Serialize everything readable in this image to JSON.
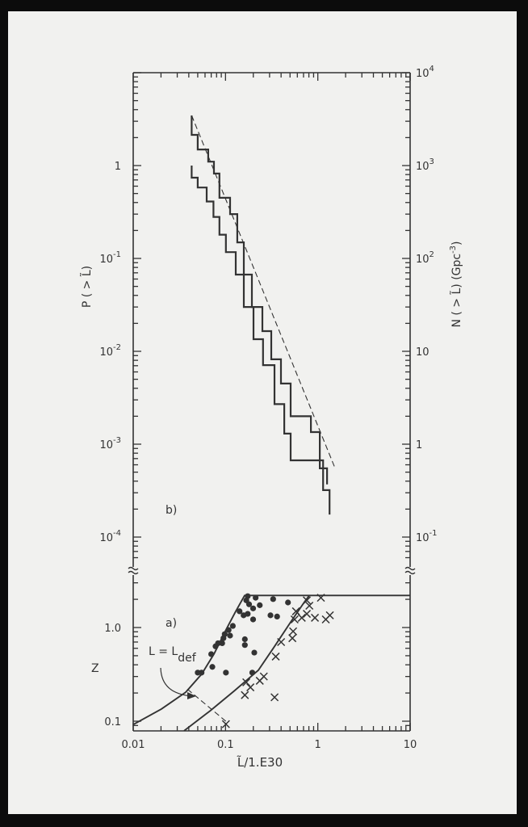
{
  "colors": {
    "ink": "#333333",
    "paper": "#f1f1ef",
    "frame": "#0c0c0c"
  },
  "chart_data": [
    {
      "panel": "b)",
      "type": "line",
      "x_scale": "log",
      "y_scale": "log",
      "xlim": [
        0.01,
        10
      ],
      "ylim": [
        4e-05,
        10
      ],
      "ylabel": "P ( > L̃)",
      "ylabel_right": {
        "text": "N ( > L̃) (Gpc",
        "exp": "-3",
        "tail": ")"
      },
      "ylim_right": [
        0.04,
        10000
      ],
      "yticks_left": [
        {
          "value": 1,
          "base": "1",
          "exp": ""
        },
        {
          "value": 0.1,
          "base": "10",
          "exp": "-1"
        },
        {
          "value": 0.01,
          "base": "10",
          "exp": "-2"
        },
        {
          "value": 0.001,
          "base": "10",
          "exp": "-3"
        },
        {
          "value": 0.0001,
          "base": "10",
          "exp": "-4"
        }
      ],
      "yticks_right": [
        {
          "value": 10000,
          "base": "10",
          "exp": "4"
        },
        {
          "value": 1000,
          "base": "10",
          "exp": "3"
        },
        {
          "value": 100,
          "base": "10",
          "exp": "2"
        },
        {
          "value": 10,
          "base": "10",
          "exp": ""
        },
        {
          "value": 1,
          "base": "1",
          "exp": ""
        },
        {
          "value": 0.1,
          "base": "10",
          "exp": "-1"
        }
      ],
      "grid": false,
      "series": [
        {
          "style": "step",
          "points": [
            [
              0.043,
              3.46
            ],
            [
              0.043,
              2.14
            ],
            [
              0.05,
              2.14
            ],
            [
              0.05,
              1.49
            ],
            [
              0.065,
              1.49
            ],
            [
              0.065,
              1.1
            ],
            [
              0.075,
              1.1
            ],
            [
              0.075,
              0.82
            ],
            [
              0.086,
              0.82
            ],
            [
              0.086,
              0.45
            ],
            [
              0.112,
              0.45
            ],
            [
              0.112,
              0.3
            ],
            [
              0.134,
              0.3
            ],
            [
              0.134,
              0.149
            ],
            [
              0.158,
              0.149
            ],
            [
              0.158,
              0.067
            ],
            [
              0.193,
              0.067
            ],
            [
              0.193,
              0.03
            ],
            [
              0.251,
              0.03
            ],
            [
              0.251,
              0.0165
            ],
            [
              0.313,
              0.0165
            ],
            [
              0.313,
              0.0082
            ],
            [
              0.399,
              0.0082
            ],
            [
              0.399,
              0.0045
            ],
            [
              0.508,
              0.0045
            ],
            [
              0.508,
              0.002
            ],
            [
              0.841,
              0.002
            ],
            [
              0.841,
              0.00135
            ],
            [
              1.05,
              0.00135
            ],
            [
              1.05,
              0.00055
            ],
            [
              1.26,
              0.00055
            ],
            [
              1.26,
              0.00037
            ]
          ]
        },
        {
          "style": "step",
          "points": [
            [
              0.043,
              1.0
            ],
            [
              0.043,
              0.74
            ],
            [
              0.05,
              0.74
            ],
            [
              0.05,
              0.58
            ],
            [
              0.0625,
              0.58
            ],
            [
              0.0625,
              0.41
            ],
            [
              0.074,
              0.41
            ],
            [
              0.074,
              0.28
            ],
            [
              0.086,
              0.28
            ],
            [
              0.086,
              0.18
            ],
            [
              0.101,
              0.18
            ],
            [
              0.101,
              0.117
            ],
            [
              0.129,
              0.117
            ],
            [
              0.129,
              0.067
            ],
            [
              0.158,
              0.067
            ],
            [
              0.158,
              0.03
            ],
            [
              0.201,
              0.03
            ],
            [
              0.201,
              0.0135
            ],
            [
              0.255,
              0.0135
            ],
            [
              0.255,
              0.0071
            ],
            [
              0.339,
              0.0071
            ],
            [
              0.339,
              0.0027
            ],
            [
              0.433,
              0.0027
            ],
            [
              0.433,
              0.0013
            ],
            [
              0.508,
              0.0013
            ],
            [
              0.508,
              0.00067
            ],
            [
              1.14,
              0.00067
            ],
            [
              1.14,
              0.00032
            ],
            [
              1.34,
              0.00032
            ],
            [
              1.34,
              0.000175
            ]
          ]
        },
        {
          "style": "dashed",
          "points": [
            [
              0.043,
              3.46
            ],
            [
              1.54,
              0.00055
            ]
          ]
        }
      ]
    },
    {
      "panel": "a)",
      "type": "scatter",
      "x_scale": "log",
      "y_scale": "log",
      "xlim": [
        0.01,
        10
      ],
      "ylim": [
        0.08,
        4
      ],
      "xlabel": "L̃/1.E30",
      "ylabel": "Z",
      "xticks": [
        {
          "value": 0.01,
          "label": "0.01"
        },
        {
          "value": 0.1,
          "label": "0.1"
        },
        {
          "value": 1,
          "label": "1"
        },
        {
          "value": 10,
          "label": "10"
        }
      ],
      "yticks": [
        {
          "value": 0.1,
          "label": "0.1"
        },
        {
          "value": 1,
          "label": "1.0"
        }
      ],
      "annotation": {
        "text": "L = L",
        "sub": "def"
      },
      "curves": [
        {
          "style": "solid",
          "points": [
            [
              0.01,
              0.092
            ],
            [
              0.0202,
              0.135
            ],
            [
              0.037,
              0.204
            ],
            [
              0.0554,
              0.32
            ],
            [
              0.075,
              0.52
            ],
            [
              0.101,
              0.94
            ],
            [
              0.129,
              1.49
            ],
            [
              0.161,
              2.2
            ],
            [
              10,
              2.2
            ]
          ]
        },
        {
          "style": "solid",
          "points": [
            [
              0.0356,
              0.079
            ],
            [
              0.068,
              0.129
            ],
            [
              0.124,
              0.21
            ],
            [
              0.227,
              0.35
            ],
            [
              0.34,
              0.63
            ],
            [
              0.51,
              1.15
            ],
            [
              0.72,
              1.89
            ],
            [
              0.81,
              2.2
            ]
          ]
        },
        {
          "style": "dashed",
          "points": [
            [
              0.0386,
              0.22
            ],
            [
              0.106,
              0.096
            ]
          ]
        }
      ],
      "dots": [
        [
          0.174,
          2.16
        ],
        [
          0.168,
          1.95
        ],
        [
          0.18,
          1.77
        ],
        [
          0.212,
          2.08
        ],
        [
          0.199,
          1.6
        ],
        [
          0.235,
          1.73
        ],
        [
          0.328,
          2.01
        ],
        [
          0.475,
          1.85
        ],
        [
          0.142,
          1.49
        ],
        [
          0.157,
          1.35
        ],
        [
          0.174,
          1.4
        ],
        [
          0.199,
          1.22
        ],
        [
          0.307,
          1.35
        ],
        [
          0.362,
          1.31
        ],
        [
          0.12,
          1.04
        ],
        [
          0.108,
          0.94
        ],
        [
          0.098,
          0.85
        ],
        [
          0.112,
          0.82
        ],
        [
          0.095,
          0.77
        ],
        [
          0.083,
          0.68
        ],
        [
          0.078,
          0.63
        ],
        [
          0.092,
          0.68
        ],
        [
          0.162,
          0.75
        ],
        [
          0.162,
          0.65
        ],
        [
          0.07,
          0.52
        ],
        [
          0.205,
          0.54
        ],
        [
          0.072,
          0.38
        ],
        [
          0.05,
          0.33
        ],
        [
          0.055,
          0.33
        ],
        [
          0.101,
          0.33
        ],
        [
          0.195,
          0.33
        ]
      ],
      "crosses": [
        [
          0.76,
          1.95
        ],
        [
          1.08,
          2.08
        ],
        [
          0.81,
          1.71
        ],
        [
          0.58,
          1.49
        ],
        [
          0.76,
          1.4
        ],
        [
          0.93,
          1.27
        ],
        [
          1.35,
          1.35
        ],
        [
          1.22,
          1.22
        ],
        [
          0.56,
          1.22
        ],
        [
          0.67,
          1.27
        ],
        [
          0.54,
          0.91
        ],
        [
          0.53,
          0.77
        ],
        [
          0.4,
          0.7
        ],
        [
          0.35,
          0.49
        ],
        [
          0.26,
          0.3
        ],
        [
          0.235,
          0.27
        ],
        [
          0.168,
          0.26
        ],
        [
          0.186,
          0.23
        ],
        [
          0.162,
          0.19
        ],
        [
          0.34,
          0.18
        ],
        [
          0.101,
          0.093
        ]
      ]
    }
  ]
}
